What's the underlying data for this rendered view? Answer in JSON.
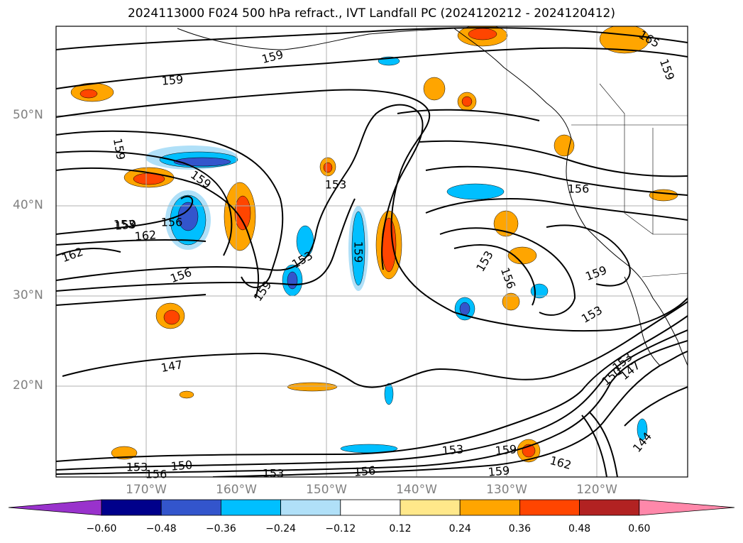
{
  "title": "2024113000 F024 500 hPa refract., IVT Landfall PC (2024120212 - 2024120412)",
  "lat_labels": [
    "50°N",
    "40°N",
    "30°N",
    "20°N"
  ],
  "lon_labels": [
    "170°W",
    "160°W",
    "150°W",
    "140°W",
    "130°W",
    "120°W"
  ],
  "colorbar": {
    "ticks": [
      "−0.60",
      "−0.48",
      "−0.36",
      "−0.24",
      "−0.12",
      "0.12",
      "0.24",
      "0.36",
      "0.48",
      "0.60"
    ],
    "colors": [
      "#9932cc",
      "#00008b",
      "#3355cc",
      "#00bfff",
      "#b0e0f8",
      "#ffffff",
      "#ffe88a",
      "#ffa500",
      "#ff4500",
      "#b22222",
      "#ff88aa"
    ]
  },
  "contour_labels": [
    "159",
    "159",
    "159",
    "159",
    "162",
    "165",
    "159",
    "153",
    "156",
    "159",
    "162",
    "156",
    "153",
    "159",
    "159",
    "153",
    "153",
    "156",
    "156",
    "159",
    "153",
    "147",
    "153",
    "150",
    "147",
    "144",
    "153",
    "159",
    "162",
    "159",
    "153",
    "156",
    "150",
    "153",
    "156"
  ]
}
